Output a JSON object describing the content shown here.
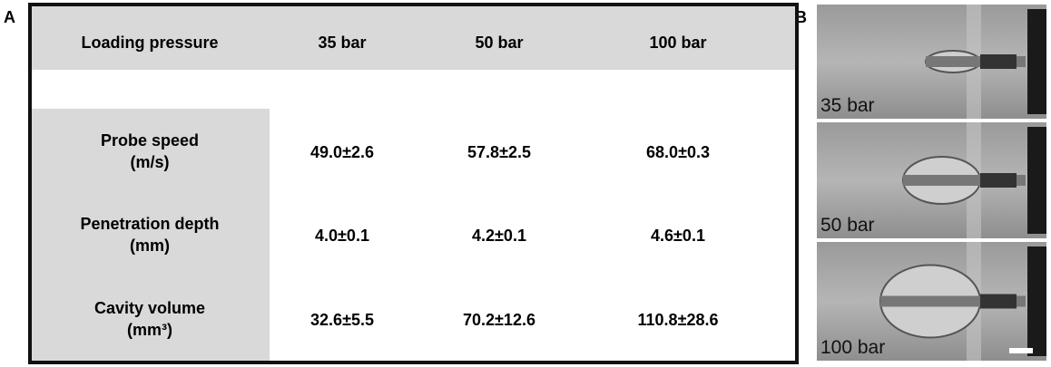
{
  "panels": {
    "a_label": "A",
    "b_label": "B"
  },
  "table": {
    "header": [
      "Loading pressure",
      "35 bar",
      "50 bar",
      "100 bar"
    ],
    "rows": [
      {
        "label": [
          "Probe speed",
          "(m/s)"
        ],
        "values": [
          "49.0±2.6",
          "57.8±2.5",
          "68.0±0.3"
        ]
      },
      {
        "label": [
          "Penetration depth",
          "(mm)"
        ],
        "values": [
          "4.0±0.1",
          "4.2±0.1",
          "4.6±0.1"
        ]
      },
      {
        "label": [
          "Cavity volume",
          "(mm³)"
        ],
        "values": [
          "32.6±5.5",
          "70.2±12.6",
          "110.8±28.6"
        ]
      }
    ]
  },
  "images": {
    "captions": [
      "35 bar",
      "50 bar",
      "100 bar"
    ]
  }
}
